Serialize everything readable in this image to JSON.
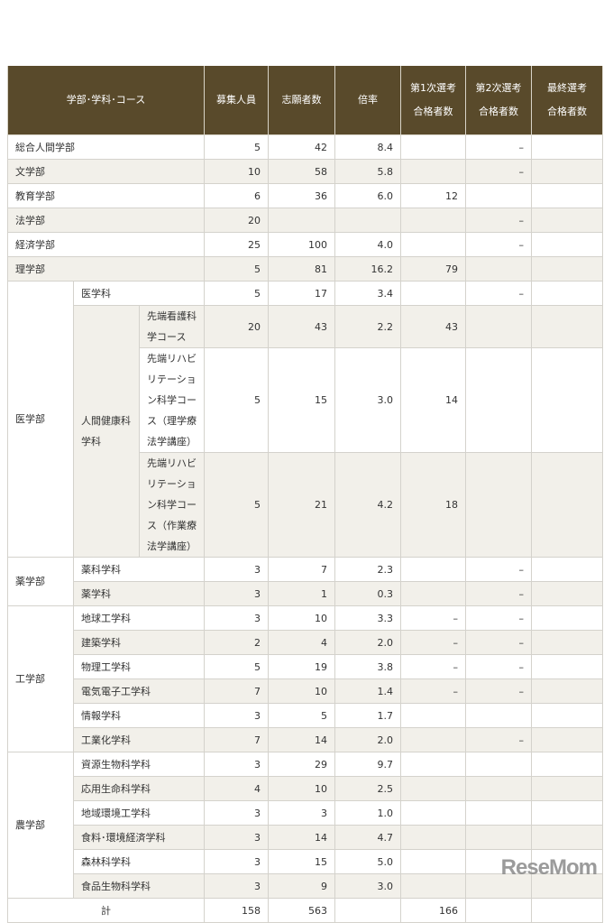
{
  "header": {
    "name_col": "学部･学科･コース",
    "cols": [
      "募集人員",
      "志願者数",
      "倍率",
      "第1次選考\n合格者数",
      "第2次選考\n合格者数",
      "最終選考\n合格者数"
    ]
  },
  "rows": [
    {
      "cells": [
        {
          "t": "総合人間学部",
          "cs": 3
        }
      ],
      "v": [
        "5",
        "42",
        "8.4",
        "",
        "–",
        ""
      ]
    },
    {
      "cells": [
        {
          "t": "文学部",
          "cs": 3
        }
      ],
      "v": [
        "10",
        "58",
        "5.8",
        "",
        "–",
        ""
      ]
    },
    {
      "cells": [
        {
          "t": "教育学部",
          "cs": 3
        }
      ],
      "v": [
        "6",
        "36",
        "6.0",
        "12",
        "",
        ""
      ]
    },
    {
      "cells": [
        {
          "t": "法学部",
          "cs": 3
        }
      ],
      "v": [
        "20",
        "",
        "",
        "",
        "–",
        ""
      ]
    },
    {
      "cells": [
        {
          "t": "経済学部",
          "cs": 3
        }
      ],
      "v": [
        "25",
        "100",
        "4.0",
        "",
        "–",
        ""
      ]
    },
    {
      "cells": [
        {
          "t": "理学部",
          "cs": 3
        }
      ],
      "v": [
        "5",
        "81",
        "16.2",
        "79",
        "",
        ""
      ]
    },
    {
      "cells": [
        {
          "t": "医学部",
          "rs": 4,
          "bg": "w"
        },
        {
          "t": "医学科",
          "cs": 2
        }
      ],
      "v": [
        "5",
        "17",
        "3.4",
        "",
        "–",
        ""
      ]
    },
    {
      "cells": [
        {
          "t": "人間健康科学科",
          "rs": 3,
          "bg": "b"
        },
        {
          "t": "先端看護科学コース"
        }
      ],
      "v": [
        "20",
        "43",
        "2.2",
        "43",
        "",
        ""
      ],
      "h": 44
    },
    {
      "cells": [
        {
          "t": "先端リハビリテーション科学コース（理学療法学講座）"
        }
      ],
      "v": [
        "5",
        "15",
        "3.0",
        "14",
        "",
        ""
      ],
      "h": 95
    },
    {
      "cells": [
        {
          "t": "先端リハビリテーション科学コース（作業療法学講座）"
        }
      ],
      "v": [
        "5",
        "21",
        "4.2",
        "18",
        "",
        ""
      ],
      "h": 95
    },
    {
      "cells": [
        {
          "t": "薬学部",
          "rs": 2,
          "bg": "w"
        },
        {
          "t": "薬科学科",
          "cs": 2
        }
      ],
      "v": [
        "3",
        "7",
        "2.3",
        "",
        "–",
        ""
      ]
    },
    {
      "cells": [
        {
          "t": "薬学科",
          "cs": 2
        }
      ],
      "v": [
        "3",
        "1",
        "0.3",
        "",
        "–",
        ""
      ]
    },
    {
      "cells": [
        {
          "t": "工学部",
          "rs": 6,
          "bg": "w"
        },
        {
          "t": "地球工学科",
          "cs": 2
        }
      ],
      "v": [
        "3",
        "10",
        "3.3",
        "–",
        "–",
        ""
      ]
    },
    {
      "cells": [
        {
          "t": "建築学科",
          "cs": 2
        }
      ],
      "v": [
        "2",
        "4",
        "2.0",
        "–",
        "–",
        ""
      ]
    },
    {
      "cells": [
        {
          "t": "物理工学科",
          "cs": 2
        }
      ],
      "v": [
        "5",
        "19",
        "3.8",
        "–",
        "–",
        ""
      ]
    },
    {
      "cells": [
        {
          "t": "電気電子工学科",
          "cs": 2
        }
      ],
      "v": [
        "7",
        "10",
        "1.4",
        "–",
        "–",
        ""
      ]
    },
    {
      "cells": [
        {
          "t": "情報学科",
          "cs": 2
        }
      ],
      "v": [
        "3",
        "5",
        "1.7",
        "",
        "",
        ""
      ]
    },
    {
      "cells": [
        {
          "t": "工業化学科",
          "cs": 2
        }
      ],
      "v": [
        "7",
        "14",
        "2.0",
        "",
        "–",
        ""
      ]
    },
    {
      "cells": [
        {
          "t": "農学部",
          "rs": 6,
          "bg": "w"
        },
        {
          "t": "資源生物科学科",
          "cs": 2
        }
      ],
      "v": [
        "3",
        "29",
        "9.7",
        "",
        "",
        ""
      ]
    },
    {
      "cells": [
        {
          "t": "応用生命科学科",
          "cs": 2
        }
      ],
      "v": [
        "4",
        "10",
        "2.5",
        "",
        "",
        ""
      ]
    },
    {
      "cells": [
        {
          "t": "地域環境工学科",
          "cs": 2
        }
      ],
      "v": [
        "3",
        "3",
        "1.0",
        "",
        "",
        ""
      ]
    },
    {
      "cells": [
        {
          "t": "食料･環境経済学科",
          "cs": 2
        }
      ],
      "v": [
        "3",
        "14",
        "4.7",
        "",
        "",
        ""
      ]
    },
    {
      "cells": [
        {
          "t": "森林科学科",
          "cs": 2
        }
      ],
      "v": [
        "3",
        "15",
        "5.0",
        "",
        "",
        ""
      ]
    },
    {
      "cells": [
        {
          "t": "食品生物科学科",
          "cs": 2
        }
      ],
      "v": [
        "3",
        "9",
        "3.0",
        "",
        "",
        ""
      ]
    },
    {
      "cells": [
        {
          "t": "計",
          "cs": 3,
          "center": true
        }
      ],
      "v": [
        "158",
        "563",
        "",
        "166",
        "",
        ""
      ],
      "total": true
    }
  ],
  "watermark": "ReseMom",
  "colors": {
    "header_bg": "#594a2b",
    "stripe": "#f2f0ea"
  }
}
